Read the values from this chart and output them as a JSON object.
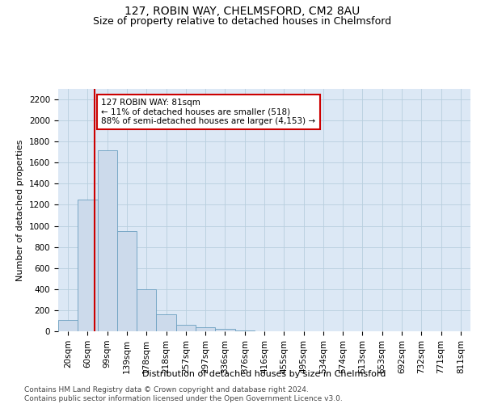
{
  "title1": "127, ROBIN WAY, CHELMSFORD, CM2 8AU",
  "title2": "Size of property relative to detached houses in Chelmsford",
  "xlabel": "Distribution of detached houses by size in Chelmsford",
  "ylabel": "Number of detached properties",
  "bin_labels": [
    "20sqm",
    "60sqm",
    "99sqm",
    "139sqm",
    "178sqm",
    "218sqm",
    "257sqm",
    "297sqm",
    "336sqm",
    "376sqm",
    "416sqm",
    "455sqm",
    "495sqm",
    "534sqm",
    "574sqm",
    "613sqm",
    "653sqm",
    "692sqm",
    "732sqm",
    "771sqm",
    "811sqm"
  ],
  "bar_values": [
    110,
    1250,
    1720,
    950,
    400,
    160,
    65,
    35,
    20,
    8,
    2,
    0,
    0,
    0,
    0,
    0,
    0,
    0,
    0,
    0,
    0
  ],
  "bar_color": "#ccdaeb",
  "bar_edge_color": "#6a9fc0",
  "vline_x_bar_index": 1.35,
  "vline_color": "#cc0000",
  "annotation_text": "127 ROBIN WAY: 81sqm\n← 11% of detached houses are smaller (518)\n88% of semi-detached houses are larger (4,153) →",
  "annotation_box_color": "#ffffff",
  "annotation_box_edge": "#cc0000",
  "ylim": [
    0,
    2300
  ],
  "yticks": [
    0,
    200,
    400,
    600,
    800,
    1000,
    1200,
    1400,
    1600,
    1800,
    2000,
    2200
  ],
  "footer": "Contains HM Land Registry data © Crown copyright and database right 2024.\nContains public sector information licensed under the Open Government Licence v3.0.",
  "bg_color": "#ffffff",
  "plot_bg_color": "#dce8f5",
  "grid_color": "#b8cede",
  "title1_fontsize": 10,
  "title2_fontsize": 9,
  "axis_label_fontsize": 8,
  "tick_fontsize": 7.5,
  "footer_fontsize": 6.5,
  "annotation_fontsize": 7.5
}
